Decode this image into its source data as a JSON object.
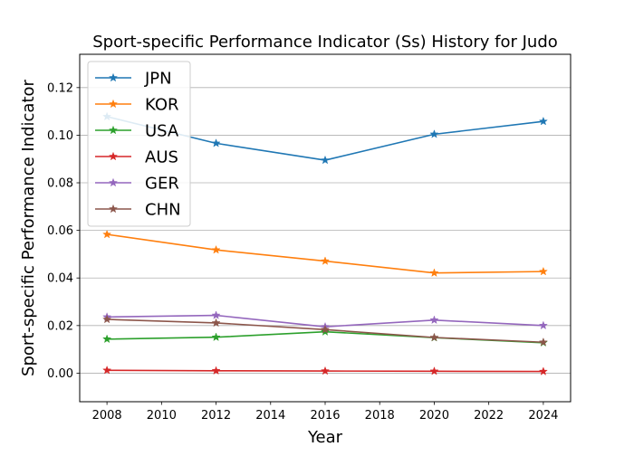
{
  "chart_data": {
    "type": "line",
    "title": "Sport-specific Performance Indicator (Ss) History for Judo",
    "xlabel": "Year",
    "ylabel": "Sport-specific Performance Indicator",
    "x": [
      2008,
      2012,
      2016,
      2020,
      2024
    ],
    "xlim": [
      2007,
      2025
    ],
    "ylim": [
      -0.012,
      0.134
    ],
    "xticks": [
      2008,
      2010,
      2012,
      2014,
      2016,
      2018,
      2020,
      2022,
      2024
    ],
    "yticks": [
      0.0,
      0.02,
      0.04,
      0.06,
      0.08,
      0.1,
      0.12
    ],
    "ytick_labels": [
      "0.00",
      "0.02",
      "0.04",
      "0.06",
      "0.08",
      "0.10",
      "0.12"
    ],
    "grid": "horizontal",
    "legend_position": "top-left",
    "marker": "star",
    "series": [
      {
        "name": "JPN",
        "color": "#1f77b4",
        "values": [
          0.1078,
          0.0966,
          0.0895,
          0.1004,
          0.1058
        ]
      },
      {
        "name": "KOR",
        "color": "#ff7f0e",
        "values": [
          0.0583,
          0.0518,
          0.0471,
          0.0421,
          0.0427
        ]
      },
      {
        "name": "USA",
        "color": "#2ca02c",
        "values": [
          0.0143,
          0.0151,
          0.0174,
          0.0149,
          0.0128
        ]
      },
      {
        "name": "AUS",
        "color": "#d62728",
        "values": [
          0.0012,
          0.001,
          0.0009,
          0.0008,
          0.0007
        ]
      },
      {
        "name": "GER",
        "color": "#9467bd",
        "values": [
          0.0236,
          0.0243,
          0.0195,
          0.0223,
          0.02
        ]
      },
      {
        "name": "CHN",
        "color": "#8c564b",
        "values": [
          0.0226,
          0.0211,
          0.0183,
          0.015,
          0.013
        ]
      }
    ]
  }
}
